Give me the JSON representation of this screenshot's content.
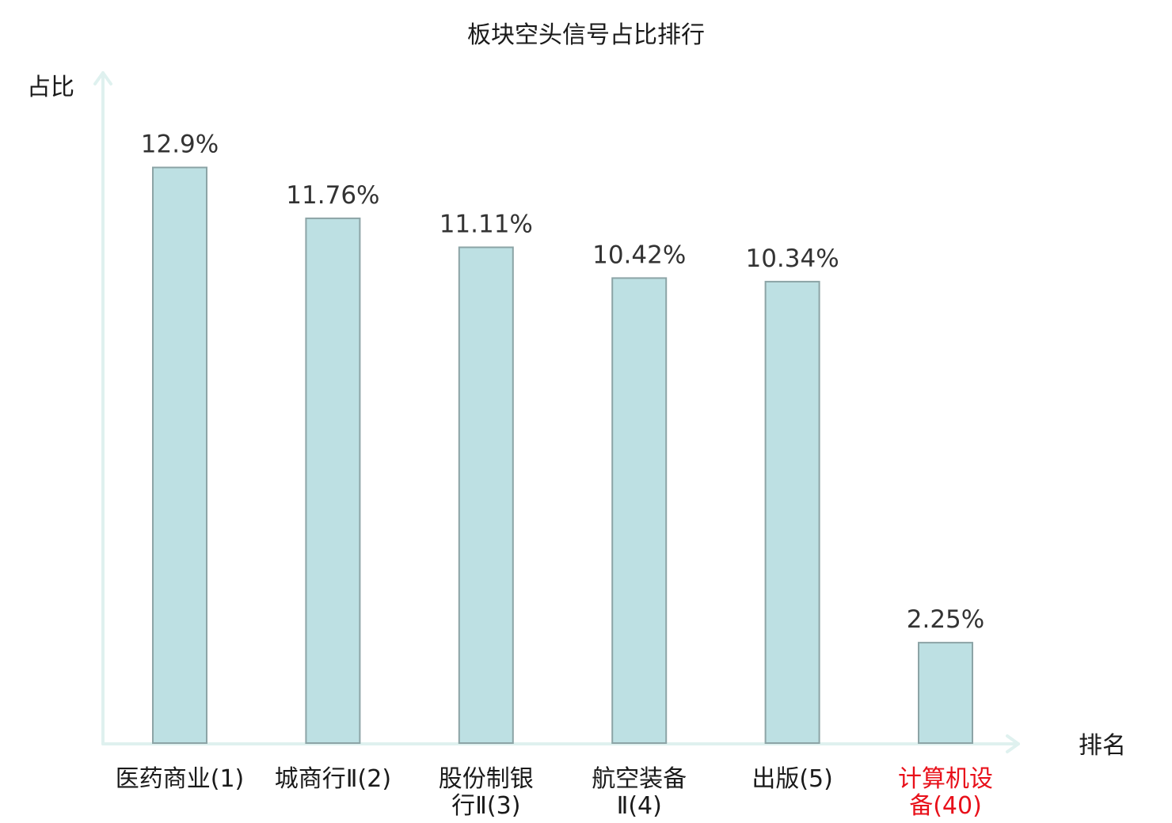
{
  "chart_data": {
    "type": "bar",
    "title": "板块空头信号占比排行",
    "ylabel": "占比",
    "xlabel": "排名",
    "ylim": [
      0,
      14.4
    ],
    "grid": false,
    "categories": [
      [
        "医药商业(1)"
      ],
      [
        "城商行Ⅱ(2)"
      ],
      [
        "股份制银",
        "行Ⅱ(3)"
      ],
      [
        "航空装备",
        "Ⅱ(4)"
      ],
      [
        "出版(5)"
      ],
      [
        "计算机设",
        "备(40)"
      ]
    ],
    "values": [
      12.9,
      11.76,
      11.11,
      10.42,
      10.34,
      2.25
    ],
    "value_labels": [
      "12.9%",
      "11.76%",
      "11.11%",
      "10.42%",
      "10.34%",
      "2.25%"
    ],
    "highlight_index": 5,
    "colors": {
      "bar_fill": "#bde0e3",
      "bar_stroke": "#8ca4a6",
      "axis": "#dff1ef",
      "highlight_text": "#e8101a",
      "text": "#1a1a1a"
    }
  }
}
